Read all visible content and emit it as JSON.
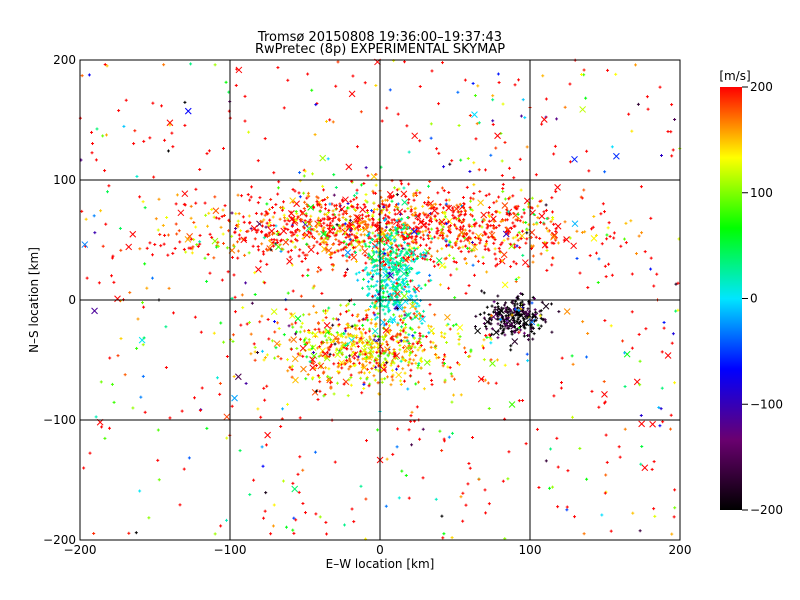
{
  "chart_data": {
    "type": "scatter",
    "title": "Tromsø 20150808 19:36:00–19:37:43",
    "subtitle": "RwPretec (8p) EXPERIMENTAL SKYMAP",
    "xlabel": "E–W location [km]",
    "ylabel": "N–S location [km]",
    "xlim": [
      -200,
      200
    ],
    "ylim": [
      -200,
      200
    ],
    "xticks": [
      "−200",
      "−100",
      "0",
      "100",
      "200"
    ],
    "yticks": [
      "−200",
      "−100",
      "0",
      "100",
      "200"
    ],
    "grid": true,
    "markers": [
      "small cross (+)",
      "large x"
    ],
    "colorbar": {
      "label": "[m/s]",
      "range": [
        -200,
        200
      ],
      "ticks": [
        "200",
        "100",
        "0",
        "−100",
        "−200"
      ],
      "colormap": "rainbow black→purple→blue→cyan→green→yellow→red",
      "colors": [
        "#000000",
        "#6a0070",
        "#0000ff",
        "#00e6ff",
        "#00ff00",
        "#ffff00",
        "#ff0000"
      ]
    },
    "clusters": [
      {
        "description": "dense northern band",
        "x_range": [
          -120,
          130
        ],
        "y_range": [
          30,
          90
        ],
        "dominant_velocity": 200
      },
      {
        "description": "central column",
        "x_range": [
          -10,
          25
        ],
        "y_range": [
          -20,
          60
        ],
        "dominant_velocity": 20
      },
      {
        "description": "southern cluster",
        "x_range": [
          -70,
          50
        ],
        "y_range": [
          -70,
          -10
        ],
        "dominant_velocity": 150
      },
      {
        "description": "eastern negative cluster",
        "x_range": [
          70,
          110
        ],
        "y_range": [
          -30,
          0
        ],
        "dominant_velocity": -200
      },
      {
        "description": "sparse background",
        "x_range": [
          -200,
          200
        ],
        "y_range": [
          -200,
          200
        ],
        "dominant_velocity": 200
      }
    ]
  }
}
